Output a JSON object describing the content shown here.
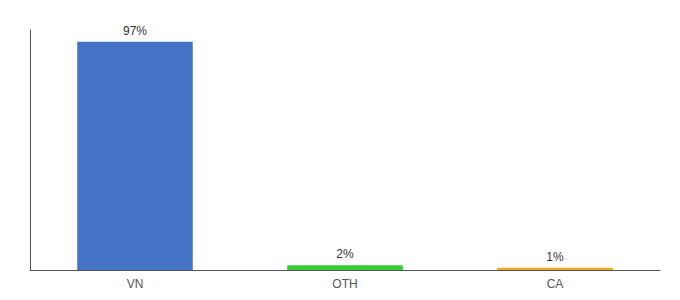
{
  "chart_data": {
    "type": "bar",
    "categories": [
      "VN",
      "OTH",
      "CA"
    ],
    "values": [
      97,
      2,
      1
    ],
    "value_labels": [
      "97%",
      "2%",
      "1%"
    ],
    "data_labels": true,
    "colors": [
      "#4472c4",
      "#33cc33",
      "#f5a623"
    ],
    "ylim": [
      0,
      102
    ],
    "yticks": [],
    "tick_labels": "x",
    "grid": false
  }
}
